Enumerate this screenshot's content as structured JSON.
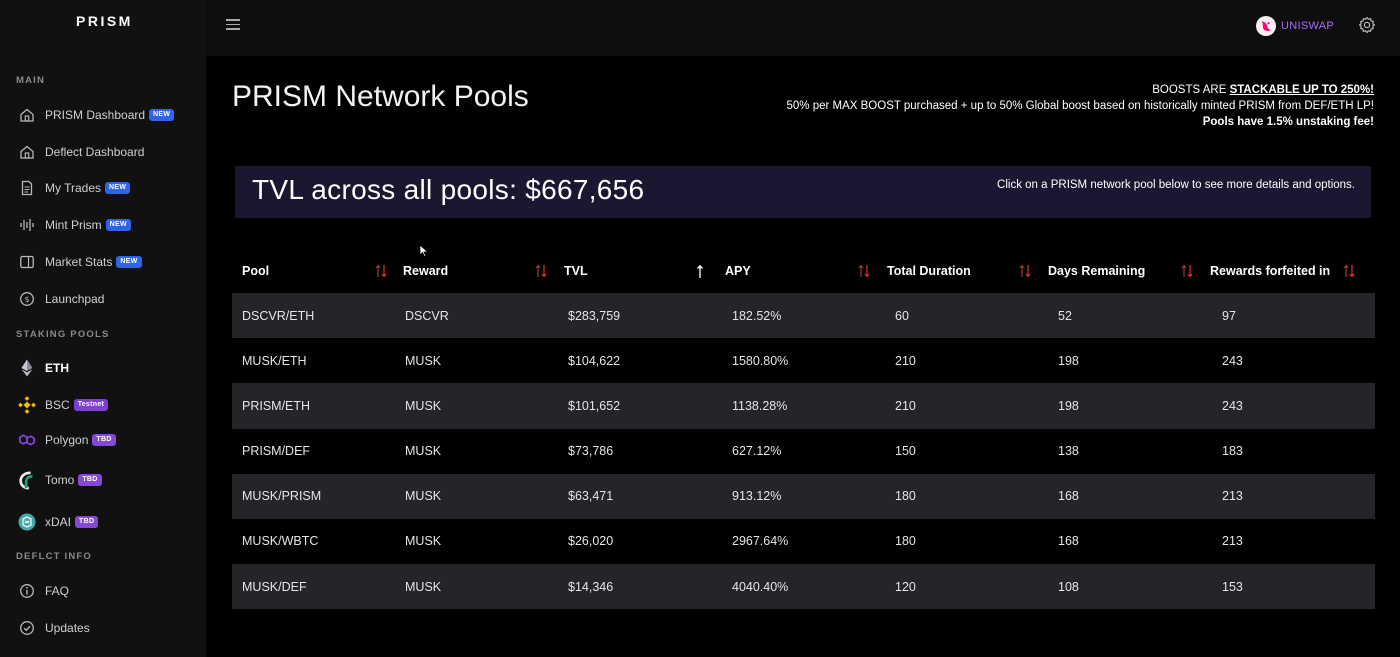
{
  "app": {
    "logo": "PRISM"
  },
  "sidebar": {
    "sections": [
      {
        "label": "MAIN"
      },
      {
        "label": "STAKING POOLS"
      },
      {
        "label": "DEFLCT INFO"
      }
    ],
    "items": [
      {
        "label": "PRISM Dashboard",
        "badge": "NEW",
        "icon": "home-icon"
      },
      {
        "label": "Deflect Dashboard",
        "badge": "",
        "icon": "home-icon"
      },
      {
        "label": "My Trades",
        "badge": "NEW",
        "icon": "document-icon"
      },
      {
        "label": "Mint Prism",
        "badge": "NEW",
        "icon": "equalizer-icon"
      },
      {
        "label": "Market Stats",
        "badge": "NEW",
        "icon": "chart-icon"
      },
      {
        "label": "Launchpad",
        "badge": "",
        "icon": "coin-icon"
      },
      {
        "label": "ETH",
        "badge": "",
        "icon": "ethereum-icon"
      },
      {
        "label": "BSC",
        "badge": "Testnet",
        "icon": "binance-icon"
      },
      {
        "label": "Polygon",
        "badge": "TBD",
        "icon": "polygon-icon"
      },
      {
        "label": "Tomo",
        "badge": "TBD",
        "icon": "tomo-icon"
      },
      {
        "label": "xDAI",
        "badge": "TBD",
        "icon": "xdai-icon"
      },
      {
        "label": "FAQ",
        "badge": "",
        "icon": "info-icon"
      },
      {
        "label": "Updates",
        "badge": "",
        "icon": "check-circle-icon"
      }
    ]
  },
  "topbar": {
    "network": "UNISWAP",
    "accent": "#a66cff"
  },
  "main": {
    "title": "PRISM Network Pools",
    "boost": {
      "line1_prefix": "BOOSTS ARE ",
      "line1_highlight": "STACKABLE UP TO 250%!",
      "line2": "50% per MAX BOOST purchased + up to 50% Global boost based on historically minted PRISM from DEF/ETH LP!",
      "line3": "Pools have 1.5% unstaking fee!"
    },
    "tvl": "TVL across all pools: $667,656",
    "hint": "Click on a PRISM network pool below to see more details and options."
  },
  "table": {
    "headers": [
      "Pool",
      "Reward",
      "TVL",
      "APY",
      "Total Duration",
      "Days Remaining",
      "Rewards forfeited in"
    ],
    "rows": [
      [
        "DSCVR/ETH",
        "DSCVR",
        "$283,759",
        "182.52%",
        "60",
        "52",
        "97"
      ],
      [
        "MUSK/ETH",
        "MUSK",
        "$104,622",
        "1580.80%",
        "210",
        "198",
        "243"
      ],
      [
        "PRISM/ETH",
        "MUSK",
        "$101,652",
        "1138.28%",
        "210",
        "198",
        "243"
      ],
      [
        "PRISM/DEF",
        "MUSK",
        "$73,786",
        "627.12%",
        "150",
        "138",
        "183"
      ],
      [
        "MUSK/PRISM",
        "MUSK",
        "$63,471",
        "913.12%",
        "180",
        "168",
        "213"
      ],
      [
        "MUSK/WBTC",
        "MUSK",
        "$26,020",
        "2967.64%",
        "180",
        "168",
        "213"
      ],
      [
        "MUSK/DEF",
        "MUSK",
        "$14,346",
        "4040.40%",
        "120",
        "108",
        "153"
      ]
    ]
  },
  "colors": {
    "sort_down": "#e0303a",
    "badge_new": "#2f64e6",
    "badge_tbd": "#8549d8",
    "banner": "#1d1630"
  }
}
